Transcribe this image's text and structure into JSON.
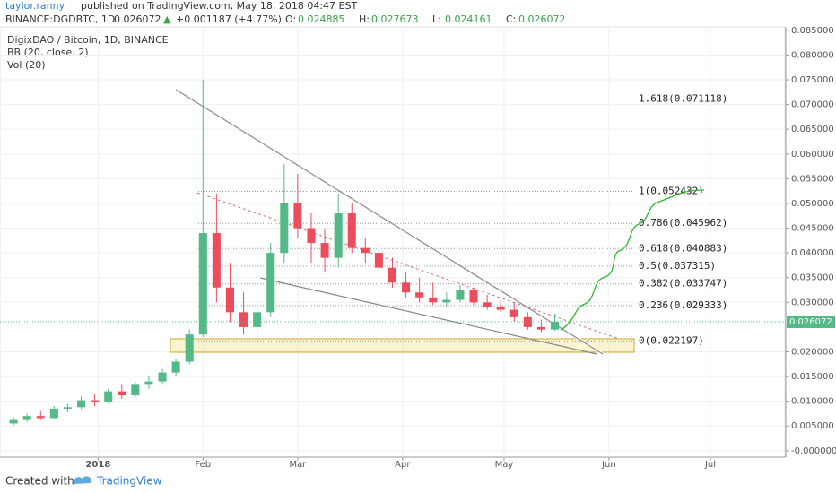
{
  "header": {
    "author": "taylor.ranny",
    "published": "published on TradingView.com, May 18, 2018 04:47 EST",
    "symbol": "BINANCE:DGDBTC, 1D",
    "last": "0.026072",
    "change": "+0.001187 (+4.77%)",
    "quote": [
      {
        "label": "O:",
        "value": "0.024885"
      },
      {
        "label": "H:",
        "value": "0.027673"
      },
      {
        "label": "L:",
        "value": "0.024161"
      },
      {
        "label": "C:",
        "value": "0.026072"
      }
    ]
  },
  "footer": {
    "created": "Created with",
    "brand": "TradingView"
  },
  "chart_data": {
    "type": "candlestick",
    "title": "DigixDAO / Bitcoin, 1D, BINANCE",
    "indicators": [
      "BB (20, close, 2)",
      "Vol (20)"
    ],
    "up_color": "#53b987",
    "down_color": "#eb4d5c",
    "grid": true,
    "candles": {
      "x": [
        0,
        4,
        8,
        12,
        16,
        20,
        24,
        28,
        32,
        36,
        40,
        44,
        48,
        52,
        56,
        60,
        64,
        68,
        72,
        76,
        80,
        84,
        88,
        92,
        96,
        100,
        104,
        108,
        112,
        116,
        120,
        124,
        128,
        132,
        136,
        140,
        144,
        148,
        152,
        156,
        160
      ],
      "open": [
        0.0055,
        0.0062,
        0.007,
        0.0066,
        0.0085,
        0.0088,
        0.0102,
        0.0098,
        0.012,
        0.0112,
        0.0135,
        0.014,
        0.0158,
        0.018,
        0.0235,
        0.044,
        0.033,
        0.028,
        0.025,
        0.028,
        0.04,
        0.05,
        0.045,
        0.042,
        0.039,
        0.048,
        0.041,
        0.04,
        0.037,
        0.034,
        0.032,
        0.031,
        0.03,
        0.0305,
        0.0325,
        0.03,
        0.029,
        0.0285,
        0.027,
        0.025,
        0.0245
      ],
      "high": [
        0.0068,
        0.0075,
        0.0082,
        0.009,
        0.0095,
        0.011,
        0.0115,
        0.0125,
        0.0135,
        0.014,
        0.015,
        0.0165,
        0.0185,
        0.0245,
        0.075,
        0.052,
        0.038,
        0.032,
        0.029,
        0.042,
        0.058,
        0.056,
        0.048,
        0.045,
        0.052,
        0.05,
        0.043,
        0.042,
        0.039,
        0.036,
        0.035,
        0.034,
        0.032,
        0.0335,
        0.033,
        0.0315,
        0.0305,
        0.03,
        0.028,
        0.0265,
        0.0277
      ],
      "low": [
        0.005,
        0.0058,
        0.0062,
        0.0064,
        0.0078,
        0.0084,
        0.009,
        0.0095,
        0.0105,
        0.0108,
        0.0125,
        0.0135,
        0.015,
        0.0175,
        0.023,
        0.03,
        0.026,
        0.0235,
        0.022,
        0.027,
        0.038,
        0.043,
        0.038,
        0.036,
        0.037,
        0.04,
        0.038,
        0.036,
        0.033,
        0.031,
        0.03,
        0.0295,
        0.029,
        0.03,
        0.0295,
        0.0285,
        0.028,
        0.026,
        0.0245,
        0.024,
        0.0242
      ],
      "close": [
        0.0062,
        0.007,
        0.0066,
        0.0085,
        0.0088,
        0.0102,
        0.0098,
        0.012,
        0.0112,
        0.0135,
        0.014,
        0.0158,
        0.018,
        0.0235,
        0.044,
        0.033,
        0.028,
        0.025,
        0.028,
        0.04,
        0.05,
        0.045,
        0.042,
        0.039,
        0.048,
        0.041,
        0.04,
        0.037,
        0.034,
        0.032,
        0.031,
        0.03,
        0.0305,
        0.0325,
        0.03,
        0.029,
        0.0285,
        0.027,
        0.025,
        0.0245,
        0.0261
      ]
    },
    "xlim": [
      -4,
      228
    ],
    "xticks": [
      {
        "value": 25,
        "label": "2018"
      },
      {
        "value": 56,
        "label": "Feb"
      },
      {
        "value": 84,
        "label": "Mar"
      },
      {
        "value": 115,
        "label": "Apr"
      },
      {
        "value": 145,
        "label": "May"
      },
      {
        "value": 176,
        "label": "Jun"
      },
      {
        "value": 206,
        "label": "Jul"
      }
    ],
    "ylim": [
      -0.0013,
      0.0857
    ],
    "yticks": [
      {
        "value": 0.085,
        "label": "0.085000"
      },
      {
        "value": 0.08,
        "label": "0.080000"
      },
      {
        "value": 0.075,
        "label": "0.075000"
      },
      {
        "value": 0.07,
        "label": "0.070000"
      },
      {
        "value": 0.065,
        "label": "0.065000"
      },
      {
        "value": 0.06,
        "label": "0.060000"
      },
      {
        "value": 0.055,
        "label": "0.055000"
      },
      {
        "value": 0.05,
        "label": "0.050000"
      },
      {
        "value": 0.045,
        "label": "0.045000"
      },
      {
        "value": 0.04,
        "label": "0.040000"
      },
      {
        "value": 0.035,
        "label": "0.035000"
      },
      {
        "value": 0.03,
        "label": "0.030000"
      },
      {
        "value": 0.02,
        "label": "0.020000"
      },
      {
        "value": 0.015,
        "label": "0.015000"
      },
      {
        "value": 0.01,
        "label": "0.010000"
      },
      {
        "value": 0.005,
        "label": "0.005000"
      },
      {
        "value": 0,
        "label": "-0.000000"
      }
    ],
    "last_price": 0.026072,
    "last_price_color": "#53b987",
    "fib_levels": [
      {
        "label": "1.618(0.071118)",
        "value": 0.071118
      },
      {
        "label": "1(0.052432)",
        "value": 0.052432
      },
      {
        "label": "0.786(0.045962)",
        "value": 0.045962
      },
      {
        "label": "0.618(0.040883)",
        "value": 0.040883
      },
      {
        "label": "0.5(0.037315)",
        "value": 0.037315
      },
      {
        "label": "0.382(0.033747)",
        "value": 0.033747
      },
      {
        "label": "0.236(0.029333)",
        "value": 0.029333
      },
      {
        "label": "0(0.022197)",
        "value": 0.022197
      }
    ]
  }
}
